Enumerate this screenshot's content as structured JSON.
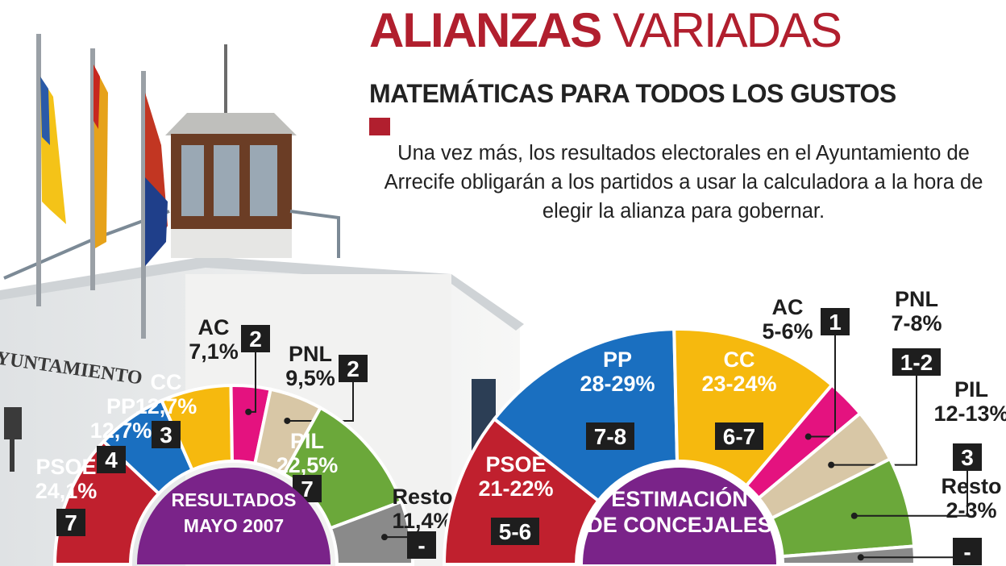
{
  "headline": {
    "bold": "ALIANZAS",
    "light": "VARIADAS"
  },
  "subheadline": "MATEMÁTICAS PARA TODOS LOS GUSTOS",
  "intro": "Una vez más, los resultados electorales en el Ayuntamiento de Arrecife obligarán a los partidos a usar la calculadora a la hora de elegir la alianza para gobernar.",
  "building_sign": "YUNTAMIENTO",
  "colors": {
    "PSOE": "#c0202e",
    "PP": "#1a6fc0",
    "CC": "#f6b90e",
    "AC": "#e4127f",
    "PNL": "#d8c7a6",
    "PIL": "#6ba83a",
    "Resto": "#8a8a8a",
    "center": "#7a2389",
    "accent": "#b11f2e"
  },
  "chart_data": [
    {
      "type": "pie",
      "center_label": [
        "RESULTADOS",
        "MAYO 2007"
      ],
      "slices": [
        {
          "party": "PSOE",
          "pct": 24.1,
          "pct_label": "24,1%",
          "seats": 7,
          "seats_label": "7"
        },
        {
          "party": "PP",
          "pct": 12.7,
          "pct_label": "12,7%",
          "seats": 4,
          "seats_label": "4"
        },
        {
          "party": "CC",
          "pct": 12.7,
          "pct_label": "12,7%",
          "seats": 3,
          "seats_label": "3"
        },
        {
          "party": "AC",
          "pct": 7.1,
          "pct_label": "7,1%",
          "seats": 2,
          "seats_label": "2"
        },
        {
          "party": "PNL",
          "pct": 9.5,
          "pct_label": "9,5%",
          "seats": 2,
          "seats_label": "2"
        },
        {
          "party": "PIL",
          "pct": 22.5,
          "pct_label": "22,5%",
          "seats": 7,
          "seats_label": "7"
        },
        {
          "party": "Resto",
          "pct": 11.4,
          "pct_label": "11,4%",
          "seats": 0,
          "seats_label": "-"
        }
      ]
    },
    {
      "type": "pie",
      "center_label": [
        "ESTIMACIÓN",
        "DE CONCEJALES"
      ],
      "slices": [
        {
          "party": "PSOE",
          "pct": 21.5,
          "pct_label": "21-22%",
          "seats": 5.5,
          "seats_label": "5-6"
        },
        {
          "party": "PP",
          "pct": 28.5,
          "pct_label": "28-29%",
          "seats": 7.5,
          "seats_label": "7-8"
        },
        {
          "party": "CC",
          "pct": 23.5,
          "pct_label": "23-24%",
          "seats": 6.5,
          "seats_label": "6-7"
        },
        {
          "party": "AC",
          "pct": 5.5,
          "pct_label": "5-6%",
          "seats": 1,
          "seats_label": "1"
        },
        {
          "party": "PNL",
          "pct": 7.5,
          "pct_label": "7-8%",
          "seats": 1.5,
          "seats_label": "1-2"
        },
        {
          "party": "PIL",
          "pct": 12.5,
          "pct_label": "12-13%",
          "seats": 3,
          "seats_label": "3"
        },
        {
          "party": "Resto",
          "pct": 2.5,
          "pct_label": "2-3%",
          "seats": 0,
          "seats_label": "-"
        }
      ]
    }
  ]
}
